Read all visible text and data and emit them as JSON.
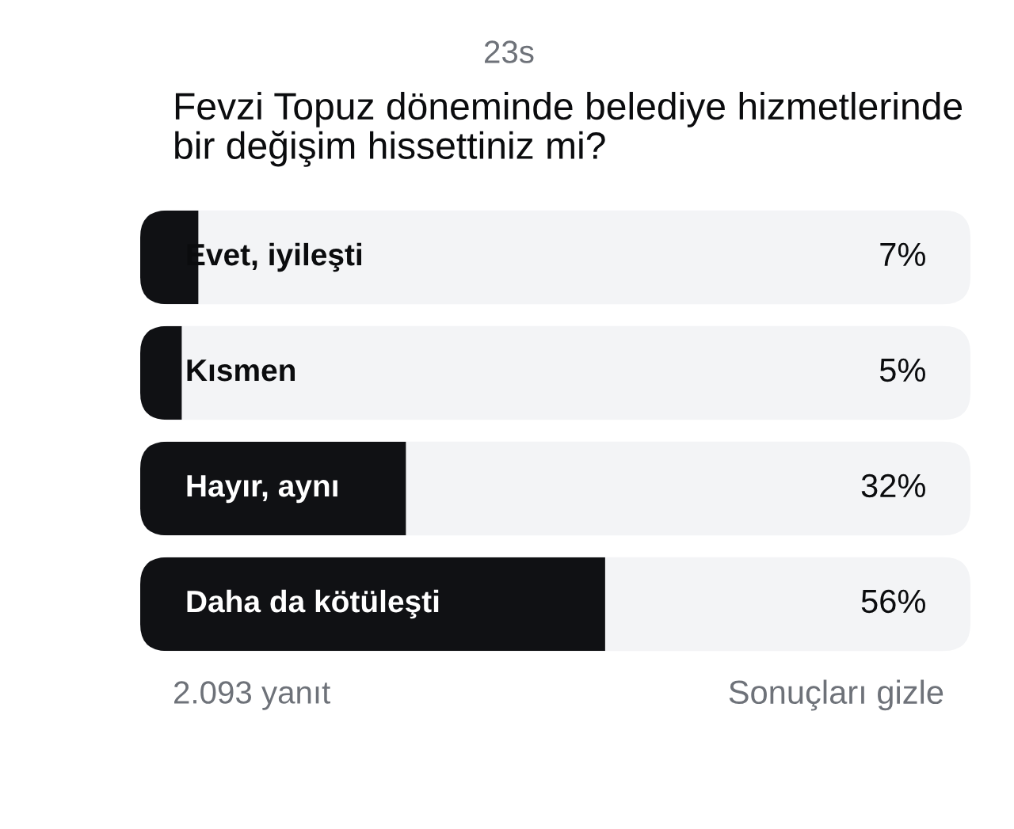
{
  "chart_data": {
    "type": "bar",
    "orientation": "horizontal",
    "title": "Fevzi Topuz döneminde belediye hizmetlerinde bir değişim hissettiniz mi?",
    "categories": [
      "Evet, iyileşti",
      "Kısmen",
      "Hayır, aynı",
      "Daha da kötüleşti"
    ],
    "values": [
      7,
      5,
      32,
      56
    ],
    "value_labels": [
      "7%",
      "5%",
      "32%",
      "56%"
    ],
    "color": "#101114",
    "xlim": [
      0,
      100
    ],
    "tick_labels": "y",
    "annotations": [
      "23s",
      "2.093 yanıt",
      "Sonuçları gizle"
    ]
  }
}
